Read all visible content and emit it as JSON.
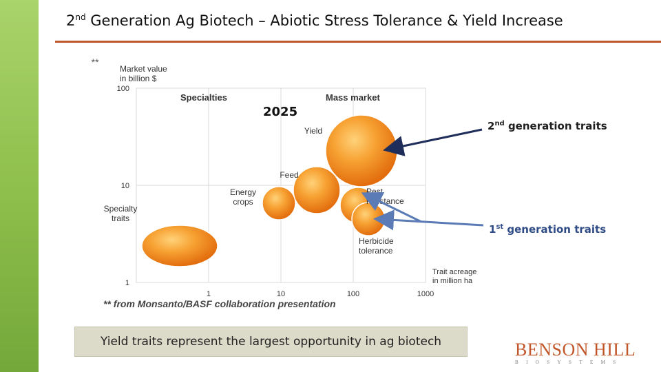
{
  "slide": {
    "title_pre": "2",
    "title_sup": "nd",
    "title_post": " Generation Ag Biotech – Abiotic Stress Tolerance & Yield Increase",
    "accent_color": "#c0562a",
    "sidebar_color": "#8fbf4c"
  },
  "chart_marker": "**",
  "year_label": "2025",
  "callouts": {
    "second_pre": "2",
    "second_sup": "nd",
    "second_post": " generation traits",
    "first_pre": "1",
    "first_sup": "st",
    "first_post": " generation traits"
  },
  "source_note": "** from Monsanto/BASF collaboration presentation",
  "bottom_box": "Yield traits represent the largest opportunity in ag biotech",
  "logo": {
    "name": "BENSON HILL",
    "sub": "BIOSYSTEMS"
  },
  "chart_data": {
    "type": "scatter",
    "bubble": true,
    "x_scale": "log",
    "y_scale": "log",
    "xlabel": "Trait acreage in million ha",
    "ylabel": "Market value in billion $",
    "xlim": [
      0.1,
      1000
    ],
    "ylim": [
      1,
      100
    ],
    "x_ticks": [
      "1",
      "10",
      "100",
      "1000"
    ],
    "y_ticks": [
      "1",
      "10",
      "100"
    ],
    "region_labels": [
      "Specialties",
      "Mass market"
    ],
    "grid": true,
    "series": [
      {
        "label": "Specialty traits",
        "x": 0.6,
        "y": 3.3,
        "size": "large-ellipse"
      },
      {
        "label": "Energy crops",
        "x": 10,
        "y": 8,
        "size": "small"
      },
      {
        "label": "Feed",
        "x": 35,
        "y": 12,
        "size": "medium"
      },
      {
        "label": "Yield",
        "x": 150,
        "y": 25,
        "size": "largest"
      },
      {
        "label": "Pest resistance",
        "x": 100,
        "y": 7,
        "size": "medium-small"
      },
      {
        "label": "Herbicide tolerance",
        "x": 120,
        "y": 4.5,
        "size": "small"
      }
    ]
  }
}
